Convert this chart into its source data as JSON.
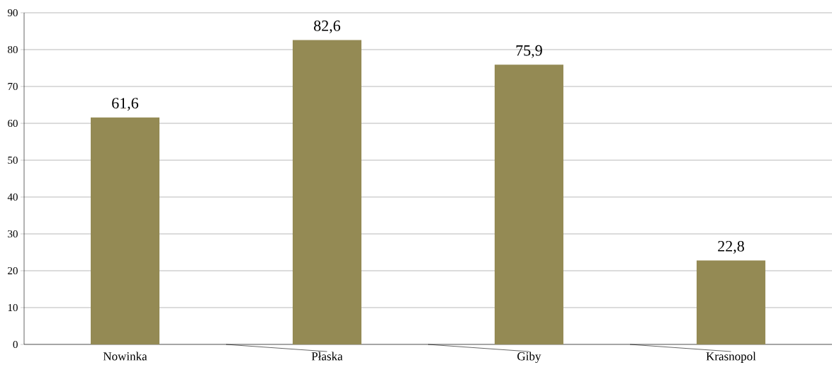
{
  "chart_data": {
    "type": "bar",
    "categories": [
      "Nowinka",
      "Płaska",
      "Giby",
      "Krasnopol"
    ],
    "values": [
      61.6,
      82.6,
      75.9,
      22.8
    ],
    "value_labels": [
      "61,6",
      "82,6",
      "75,9",
      "22,8"
    ],
    "color": "#948a54",
    "ylim": [
      0,
      90
    ],
    "yticks": [
      0,
      10,
      20,
      30,
      40,
      50,
      60,
      70,
      80,
      90
    ],
    "grid": "y"
  }
}
